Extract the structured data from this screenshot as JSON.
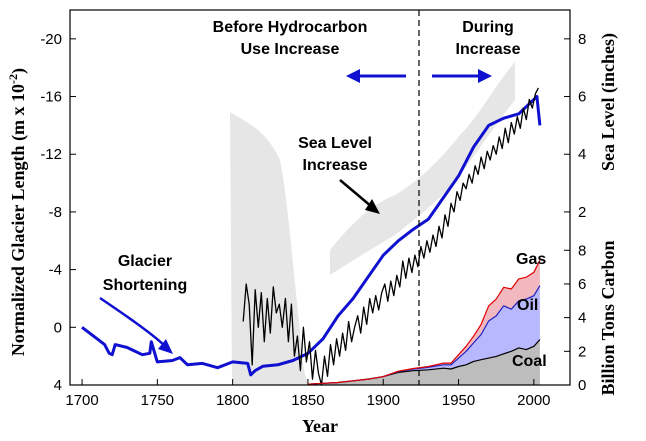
{
  "chart_data": {
    "type": "line",
    "xlabel": "Year",
    "ylabel_left": "Normalized Glacier Length (m x 10",
    "ylabel_left_exponent": "-2",
    "ylabel_left_close": ")",
    "ylabel_right_top": "Sea Level (inches)",
    "ylabel_right_bottom": "Billion Tons Carbon",
    "xlim": [
      1692,
      2024
    ],
    "x_ticks": [
      1700,
      1750,
      1800,
      1850,
      1900,
      1950,
      2000
    ],
    "glacier_axis": {
      "ylim": [
        4,
        -22
      ],
      "ticks": [
        4,
        0,
        -4,
        -8,
        -12,
        -16,
        -20
      ],
      "tick_labels": [
        "4",
        "0",
        "-4",
        "-8",
        "-12",
        "-16",
        "-20"
      ]
    },
    "sea_level_axis": {
      "ylim": [
        -4.0,
        9.0
      ],
      "ticks": [
        2,
        4,
        6,
        8
      ],
      "tick_labels": [
        "2",
        "4",
        "6",
        "8"
      ]
    },
    "carbon_axis": {
      "ylim": [
        0,
        9.5
      ],
      "ticks": [
        0,
        2,
        4,
        6,
        8
      ],
      "tick_labels": [
        "0",
        "2",
        "4",
        "6",
        "8"
      ]
    },
    "divider_year": 1940,
    "annotations": {
      "before": [
        "Before Hydrocarbon",
        "Use Increase"
      ],
      "during": [
        "During",
        "Increase"
      ],
      "sea_level": [
        "Sea Level",
        "Increase"
      ],
      "glacier": [
        "Glacier",
        "Shortening"
      ],
      "gas": "Gas",
      "oil": "Oil",
      "coal": "Coal"
    },
    "series": [
      {
        "name": "Glacier Shortening",
        "axis": "glacier",
        "color": "#1010d0",
        "x": [
          1700,
          1710,
          1715,
          1718,
          1720,
          1722,
          1730,
          1740,
          1745,
          1746,
          1750,
          1760,
          1765,
          1770,
          1780,
          1790,
          1800,
          1810,
          1812,
          1815,
          1820,
          1830,
          1840,
          1850,
          1860,
          1870,
          1880,
          1890,
          1900,
          1910,
          1920,
          1930,
          1940,
          1950,
          1960,
          1970,
          1980,
          1990,
          2000,
          2002,
          2004
        ],
        "y": [
          0,
          0.8,
          1.2,
          1.8,
          1.9,
          1.2,
          1.4,
          1.9,
          1.8,
          1.0,
          2.4,
          2.3,
          2.1,
          2.6,
          2.5,
          2.8,
          2.4,
          2.5,
          3.3,
          3.0,
          2.7,
          2.6,
          2.3,
          1.8,
          0.8,
          -0.8,
          -2.0,
          -3.5,
          -5.0,
          -6.0,
          -6.8,
          -7.5,
          -9.0,
          -10.5,
          -12.5,
          -14.0,
          -14.5,
          -14.8,
          -15.8,
          -16.0,
          -14.0
        ]
      },
      {
        "name": "Sea Level",
        "axis": "sea_level",
        "color": "#000000",
        "x": [
          1807,
          1809,
          1811,
          1813,
          1815,
          1817,
          1819,
          1821,
          1823,
          1825,
          1827,
          1829,
          1831,
          1833,
          1835,
          1837,
          1839,
          1841,
          1843,
          1845,
          1847,
          1849,
          1851,
          1853,
          1855,
          1857,
          1859,
          1861,
          1863,
          1865,
          1867,
          1869,
          1871,
          1873,
          1875,
          1877,
          1879,
          1881,
          1883,
          1885,
          1887,
          1889,
          1891,
          1893,
          1895,
          1897,
          1899,
          1901,
          1903,
          1905,
          1907,
          1909,
          1911,
          1913,
          1915,
          1917,
          1919,
          1921,
          1923,
          1925,
          1927,
          1929,
          1931,
          1933,
          1935,
          1937,
          1939,
          1941,
          1943,
          1945,
          1947,
          1949,
          1951,
          1953,
          1955,
          1957,
          1959,
          1961,
          1963,
          1965,
          1967,
          1969,
          1971,
          1973,
          1975,
          1977,
          1979,
          1981,
          1983,
          1985,
          1987,
          1989,
          1991,
          1993,
          1995,
          1997,
          1999,
          2001,
          2003
        ],
        "y": [
          -1.8,
          -0.5,
          -1.2,
          -3.3,
          -0.7,
          -2.0,
          -0.8,
          -2.5,
          -1.0,
          -2.2,
          -0.6,
          -1.5,
          -1.2,
          -2.0,
          -1.0,
          -2.5,
          -1.2,
          -3.0,
          -2.3,
          -3.5,
          -2.0,
          -3.2,
          -2.5,
          -3.8,
          -2.8,
          -3.6,
          -4.0,
          -3.0,
          -3.7,
          -2.6,
          -3.3,
          -2.4,
          -3.0,
          -2.2,
          -2.8,
          -1.8,
          -2.5,
          -2.0,
          -1.6,
          -2.2,
          -1.3,
          -1.9,
          -1.0,
          -1.5,
          -0.9,
          -1.4,
          -0.8,
          -0.5,
          -1.1,
          -0.4,
          -0.9,
          -0.2,
          -0.6,
          0.3,
          -0.3,
          0.4,
          -0.1,
          0.5,
          0.1,
          0.8,
          0.4,
          1.0,
          0.6,
          1.2,
          0.8,
          1.5,
          1.1,
          1.9,
          1.5,
          2.3,
          2.0,
          2.7,
          2.4,
          3.0,
          2.8,
          3.3,
          3.0,
          3.6,
          3.3,
          3.9,
          3.5,
          4.1,
          3.8,
          4.3,
          4.0,
          4.6,
          4.2,
          4.9,
          4.4,
          5.1,
          4.7,
          5.3,
          4.9,
          5.6,
          5.2,
          5.9,
          5.6,
          6.1,
          6.3
        ]
      },
      {
        "name": "Coal",
        "axis": "carbon",
        "color": "#000000",
        "x": [
          1850,
          1860,
          1870,
          1880,
          1890,
          1900,
          1910,
          1920,
          1930,
          1940,
          1945,
          1950,
          1955,
          1960,
          1965,
          1970,
          1975,
          1980,
          1985,
          1990,
          1995,
          2000,
          2004
        ],
        "y": [
          0.05,
          0.1,
          0.15,
          0.25,
          0.35,
          0.5,
          0.75,
          0.85,
          0.9,
          1.0,
          0.95,
          1.1,
          1.2,
          1.4,
          1.5,
          1.6,
          1.7,
          1.85,
          2.0,
          2.2,
          2.1,
          2.3,
          2.7
        ]
      },
      {
        "name": "Oil",
        "axis": "carbon",
        "color": "#2020c0",
        "x": [
          1850,
          1860,
          1870,
          1880,
          1890,
          1900,
          1910,
          1920,
          1930,
          1940,
          1945,
          1950,
          1955,
          1960,
          1965,
          1970,
          1975,
          1980,
          1985,
          1990,
          1995,
          2000,
          2004
        ],
        "y": [
          0.05,
          0.1,
          0.15,
          0.25,
          0.35,
          0.5,
          0.8,
          0.95,
          1.05,
          1.2,
          1.2,
          1.6,
          2.0,
          2.5,
          3.0,
          3.8,
          4.1,
          4.7,
          4.5,
          5.0,
          5.1,
          5.3,
          5.9
        ]
      },
      {
        "name": "Gas",
        "axis": "carbon",
        "color": "#e00000",
        "x": [
          1850,
          1860,
          1870,
          1880,
          1890,
          1900,
          1910,
          1920,
          1930,
          1940,
          1945,
          1950,
          1955,
          1960,
          1965,
          1970,
          1975,
          1980,
          1985,
          1990,
          1995,
          2000,
          2004
        ],
        "y": [
          0.05,
          0.1,
          0.15,
          0.25,
          0.35,
          0.5,
          0.82,
          0.98,
          1.1,
          1.3,
          1.3,
          1.8,
          2.3,
          2.9,
          3.6,
          4.7,
          5.1,
          5.8,
          5.7,
          6.3,
          6.4,
          6.7,
          7.4
        ]
      }
    ]
  }
}
